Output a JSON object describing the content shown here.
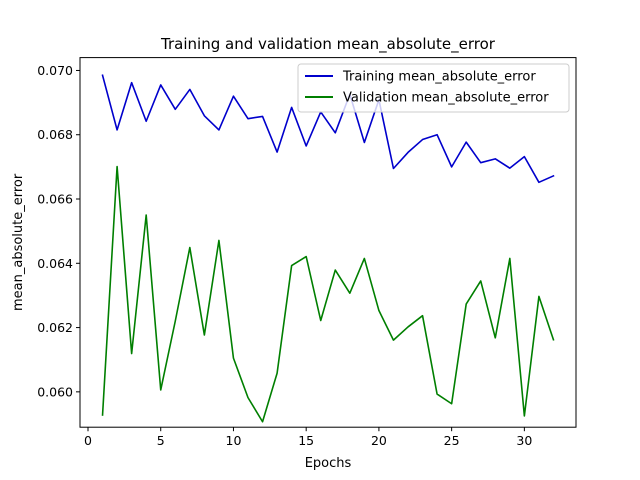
{
  "chart_data": {
    "type": "line",
    "title": "Training and validation mean_absolute_error",
    "xlabel": "Epochs",
    "ylabel": "mean_absolute_error",
    "xlim": [
      -0.55,
      33.55
    ],
    "ylim": [
      0.0589,
      0.0704
    ],
    "xticks": [
      0,
      5,
      10,
      15,
      20,
      25,
      30
    ],
    "yticks": [
      0.06,
      0.062,
      0.064,
      0.066,
      0.068,
      0.07
    ],
    "ytick_labels": [
      "0.060",
      "0.062",
      "0.064",
      "0.066",
      "0.068",
      "0.070"
    ],
    "legend_position": "upper right",
    "grid": false,
    "x": [
      1,
      2,
      3,
      4,
      5,
      6,
      7,
      8,
      9,
      10,
      11,
      12,
      13,
      14,
      15,
      16,
      17,
      18,
      19,
      20,
      21,
      22,
      23,
      24,
      25,
      26,
      27,
      28,
      29,
      30,
      31,
      32
    ],
    "series": [
      {
        "name": "Training mean_absolute_error",
        "color": "#0000cc",
        "values": [
          0.06985,
          0.06815,
          0.06962,
          0.06842,
          0.06955,
          0.06879,
          0.06941,
          0.06859,
          0.06815,
          0.0692,
          0.0685,
          0.06857,
          0.06746,
          0.06885,
          0.06765,
          0.06871,
          0.06806,
          0.06926,
          0.06776,
          0.06909,
          0.06695,
          0.06745,
          0.06785,
          0.068,
          0.067,
          0.06777,
          0.06713,
          0.06725,
          0.06696,
          0.06732,
          0.06652,
          0.06672
        ]
      },
      {
        "name": "Validation mean_absolute_error",
        "color": "#007f00",
        "values": [
          0.05928,
          0.06701,
          0.06119,
          0.0655,
          0.06006,
          0.0622,
          0.06449,
          0.06177,
          0.06471,
          0.06105,
          0.05982,
          0.05907,
          0.06058,
          0.06393,
          0.06421,
          0.06222,
          0.06379,
          0.06307,
          0.06415,
          0.06253,
          0.06161,
          0.06202,
          0.06237,
          0.05993,
          0.05963,
          0.06273,
          0.06345,
          0.06168,
          0.06415,
          0.05925,
          0.06297,
          0.06162
        ]
      }
    ]
  }
}
